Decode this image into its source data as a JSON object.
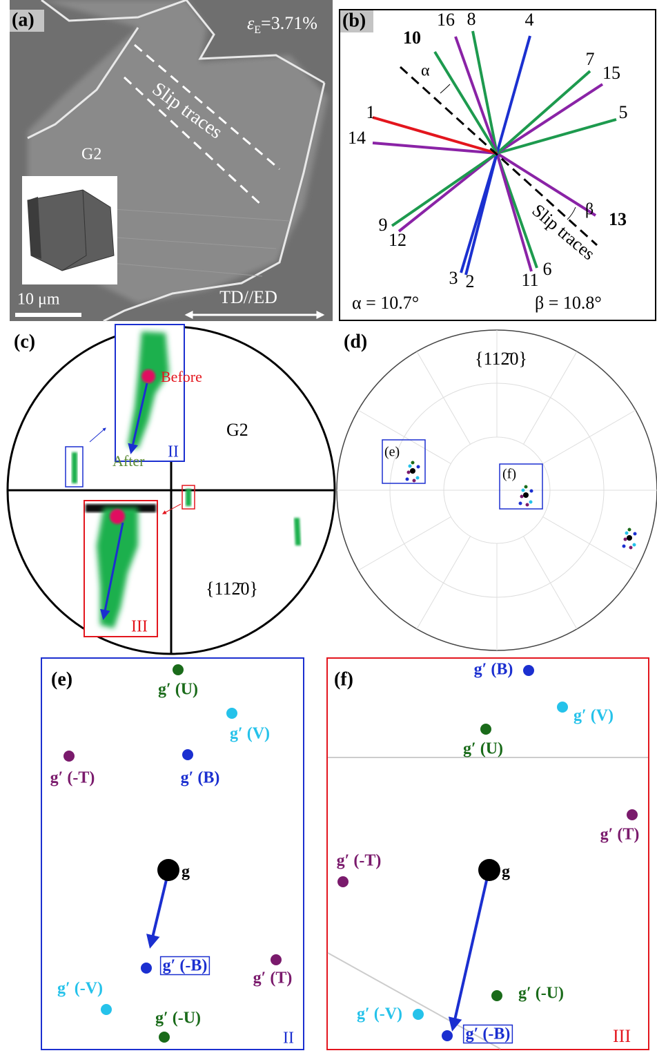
{
  "panels": {
    "a": {
      "label": "(a)",
      "strain_symbol": "ε",
      "strain_subscript": "E",
      "strain_value": "=3.71%",
      "annotation": "Slip traces",
      "grain": "G2",
      "scale_bar": "10 μm",
      "direction": "TD//ED"
    },
    "b": {
      "label": "(b)",
      "alpha_symbol": "α",
      "beta_symbol": "β",
      "annotation": "Slip traces",
      "alpha_text": "α = 10.7°",
      "beta_text": "β = 10.8°",
      "lines": [
        {
          "label": "1",
          "color": "#e3151d",
          "bold": false
        },
        {
          "label": "14",
          "color": "#8a23a6",
          "bold": false
        },
        {
          "label": "10",
          "color": "#1d9a4e",
          "bold": true
        },
        {
          "label": "16",
          "color": "#8a23a6",
          "bold": false
        },
        {
          "label": "8",
          "color": "#1d9a4e",
          "bold": false
        },
        {
          "label": "4",
          "color": "#1b30d0",
          "bold": false
        },
        {
          "label": "7",
          "color": "#1d9a4e",
          "bold": false
        },
        {
          "label": "15",
          "color": "#8a23a6",
          "bold": false
        },
        {
          "label": "5",
          "color": "#1d9a4e",
          "bold": false
        },
        {
          "label": "9",
          "color": "#1d9a4e",
          "bold": false
        },
        {
          "label": "12",
          "color": "#8a23a6",
          "bold": false
        },
        {
          "label": "3",
          "color": "#1b30d0",
          "bold": false
        },
        {
          "label": "2",
          "color": "#1b30d0",
          "bold": false
        },
        {
          "label": "11",
          "color": "#8a23a6",
          "bold": false
        },
        {
          "label": "6",
          "color": "#1d9a4e",
          "bold": false
        },
        {
          "label": "13",
          "color": "#8a23a6",
          "bold": true
        }
      ]
    },
    "c": {
      "label": "(c)",
      "before": "Before",
      "after": "After",
      "region_ii": "II",
      "grain": "G2",
      "region_iii": "III",
      "plane": "{112̄0}"
    },
    "d": {
      "label": "(d)",
      "plane": "{112̄0}",
      "box_e": "(e)",
      "box_f": "(f)"
    },
    "e": {
      "label": "(e)",
      "g": "g",
      "region": "II",
      "points": [
        {
          "label": "g′ (U)",
          "color": "#1a6b1a"
        },
        {
          "label": "g′ (V)",
          "color": "#25c2ea"
        },
        {
          "label": "g′ (-T)",
          "color": "#7a1a6c"
        },
        {
          "label": "g′ (B)",
          "color": "#1b2fd0"
        },
        {
          "label": "g′ (-B)",
          "color": "#1b2fd0"
        },
        {
          "label": "g′ (T)",
          "color": "#7a1a6c"
        },
        {
          "label": "g′ (-V)",
          "color": "#25c2ea"
        },
        {
          "label": "g′ (-U)",
          "color": "#1a6b1a"
        }
      ]
    },
    "f": {
      "label": "(f)",
      "g": "g",
      "region": "III",
      "points": [
        {
          "label": "g′ (B)",
          "color": "#1b2fd0"
        },
        {
          "label": "g′ (V)",
          "color": "#25c2ea"
        },
        {
          "label": "g′ (U)",
          "color": "#1a6b1a"
        },
        {
          "label": "g′ (T)",
          "color": "#7a1a6c"
        },
        {
          "label": "g′ (-T)",
          "color": "#7a1a6c"
        },
        {
          "label": "g′ (-U)",
          "color": "#1a6b1a"
        },
        {
          "label": "g′ (-V)",
          "color": "#25c2ea"
        },
        {
          "label": "g′ (-B)",
          "color": "#1b2fd0"
        }
      ]
    }
  }
}
